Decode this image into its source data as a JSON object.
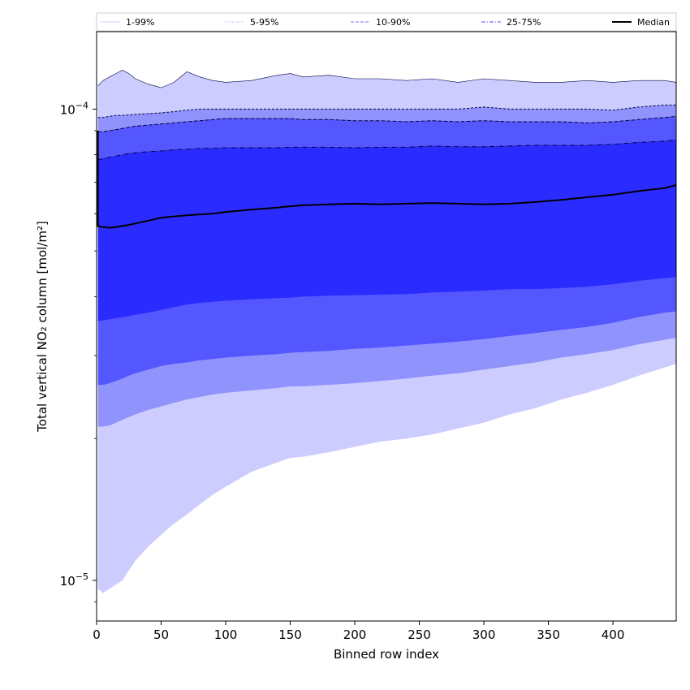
{
  "chart_data": {
    "type": "area",
    "xlabel": "Binned row index",
    "ylabel": "Total vertical NO₂ column [mol/m²]",
    "xlim": [
      0,
      449
    ],
    "ylim": [
      8.2e-06,
      0.000146
    ],
    "yscale": "log",
    "grid": false,
    "legend_position": "top",
    "x_ticks": [
      0,
      50,
      100,
      150,
      200,
      250,
      300,
      350,
      400
    ],
    "x_tick_labels": [
      "0",
      "50",
      "100",
      "150",
      "200",
      "250",
      "300",
      "350",
      "400"
    ],
    "y_ticks": [
      1e-05,
      0.0001
    ],
    "y_tick_labels": [
      {
        "base": "10",
        "exp": "−5"
      },
      {
        "base": "10",
        "exp": "−4"
      }
    ],
    "legend": [
      {
        "label": "1-99%",
        "color": "#cccdfe",
        "style": "solid"
      },
      {
        "label": "5-95%",
        "color": "#9193fd",
        "style": "dotted"
      },
      {
        "label": "10-90%",
        "color": "#6f72fd",
        "style": "dashed"
      },
      {
        "label": "25-75%",
        "color": "#4b4ef5",
        "style": "dashdot"
      },
      {
        "label": "Median",
        "color": "#000000",
        "style": "solid"
      }
    ],
    "x": [
      1,
      5,
      10,
      15,
      20,
      25,
      30,
      40,
      50,
      60,
      70,
      80,
      90,
      100,
      120,
      140,
      150,
      160,
      180,
      200,
      220,
      240,
      260,
      280,
      300,
      320,
      340,
      360,
      380,
      400,
      420,
      440,
      449
    ],
    "bands": [
      {
        "name": "1-99%",
        "fill": "#cccdfe",
        "lower": [
          9.6e-06,
          9.4e-06,
          9.6e-06,
          9.8e-06,
          1e-05,
          1.05e-05,
          1.1e-05,
          1.18e-05,
          1.25e-05,
          1.32e-05,
          1.38e-05,
          1.45e-05,
          1.52e-05,
          1.58e-05,
          1.7e-05,
          1.78e-05,
          1.82e-05,
          1.83e-05,
          1.87e-05,
          1.92e-05,
          1.97e-05,
          2e-05,
          2.04e-05,
          2.1e-05,
          2.16e-05,
          2.25e-05,
          2.32e-05,
          2.42e-05,
          2.5e-05,
          2.6e-05,
          2.72e-05,
          2.83e-05,
          2.88e-05
        ],
        "upper": [
          0.000112,
          0.000115,
          0.000117,
          0.000119,
          0.000121,
          0.000119,
          0.000116,
          0.000113,
          0.000111,
          0.000114,
          0.00012,
          0.000117,
          0.000115,
          0.000114,
          0.000115,
          0.000118,
          0.000119,
          0.000117,
          0.000118,
          0.000116,
          0.000116,
          0.000115,
          0.000116,
          0.000114,
          0.000116,
          0.000115,
          0.000114,
          0.000114,
          0.000115,
          0.000114,
          0.000115,
          0.000115,
          0.000114
        ]
      },
      {
        "name": "5-95%",
        "fill": "#9193fd",
        "lower": [
          2.12e-05,
          2.12e-05,
          2.13e-05,
          2.16e-05,
          2.19e-05,
          2.22e-05,
          2.25e-05,
          2.3e-05,
          2.34e-05,
          2.38e-05,
          2.42e-05,
          2.45e-05,
          2.48e-05,
          2.5e-05,
          2.53e-05,
          2.56e-05,
          2.58e-05,
          2.58e-05,
          2.6e-05,
          2.62e-05,
          2.65e-05,
          2.68e-05,
          2.72e-05,
          2.75e-05,
          2.8e-05,
          2.85e-05,
          2.9e-05,
          2.97e-05,
          3.02e-05,
          3.08e-05,
          3.17e-05,
          3.24e-05,
          3.27e-05
        ],
        "upper": [
          9.6e-05,
          9.6e-05,
          9.65e-05,
          9.7e-05,
          9.7e-05,
          9.72e-05,
          9.75e-05,
          9.78e-05,
          9.82e-05,
          9.88e-05,
          9.95e-05,
          0.0001,
          0.0001,
          0.0001,
          0.0001,
          0.0001,
          0.0001,
          0.0001,
          0.0001,
          0.0001,
          0.0001,
          0.0001,
          0.0001,
          0.0001,
          0.000101,
          0.0001,
          0.0001,
          0.0001,
          0.0001,
          9.95e-05,
          0.000101,
          0.000102,
          0.000102
        ]
      },
      {
        "name": "10-90%",
        "fill": "#5557fe",
        "lower": [
          2.6e-05,
          2.6e-05,
          2.62e-05,
          2.65e-05,
          2.68e-05,
          2.72e-05,
          2.75e-05,
          2.8e-05,
          2.85e-05,
          2.88e-05,
          2.9e-05,
          2.93e-05,
          2.95e-05,
          2.97e-05,
          3e-05,
          3.02e-05,
          3.04e-05,
          3.05e-05,
          3.07e-05,
          3.1e-05,
          3.12e-05,
          3.15e-05,
          3.18e-05,
          3.21e-05,
          3.25e-05,
          3.3e-05,
          3.35e-05,
          3.4e-05,
          3.45e-05,
          3.52e-05,
          3.62e-05,
          3.7e-05,
          3.72e-05
        ],
        "upper": [
          8.95e-05,
          8.95e-05,
          9e-05,
          9.05e-05,
          9.1e-05,
          9.15e-05,
          9.2e-05,
          9.25e-05,
          9.3e-05,
          9.35e-05,
          9.4e-05,
          9.45e-05,
          9.5e-05,
          9.55e-05,
          9.55e-05,
          9.55e-05,
          9.55e-05,
          9.5e-05,
          9.5e-05,
          9.45e-05,
          9.45e-05,
          9.4e-05,
          9.45e-05,
          9.4e-05,
          9.45e-05,
          9.4e-05,
          9.4e-05,
          9.4e-05,
          9.35e-05,
          9.4e-05,
          9.5e-05,
          9.6e-05,
          9.65e-05
        ]
      },
      {
        "name": "25-75%",
        "fill": "#2a2bfe",
        "lower": [
          3.55e-05,
          3.56e-05,
          3.58e-05,
          3.6e-05,
          3.62e-05,
          3.64e-05,
          3.66e-05,
          3.7e-05,
          3.75e-05,
          3.8e-05,
          3.85e-05,
          3.88e-05,
          3.9e-05,
          3.92e-05,
          3.95e-05,
          3.97e-05,
          3.98e-05,
          4e-05,
          4.02e-05,
          4.03e-05,
          4.04e-05,
          4.05e-05,
          4.08e-05,
          4.1e-05,
          4.12e-05,
          4.15e-05,
          4.15e-05,
          4.17e-05,
          4.2e-05,
          4.25e-05,
          4.32e-05,
          4.38e-05,
          4.4e-05
        ],
        "upper": [
          7.8e-05,
          7.85e-05,
          7.9e-05,
          7.95e-05,
          8e-05,
          8.05e-05,
          8.08e-05,
          8.12e-05,
          8.15e-05,
          8.2e-05,
          8.22e-05,
          8.25e-05,
          8.25e-05,
          8.28e-05,
          8.28e-05,
          8.28e-05,
          8.3e-05,
          8.3e-05,
          8.3e-05,
          8.28e-05,
          8.3e-05,
          8.3e-05,
          8.35e-05,
          8.32e-05,
          8.32e-05,
          8.35e-05,
          8.38e-05,
          8.38e-05,
          8.38e-05,
          8.42e-05,
          8.5e-05,
          8.55e-05,
          8.6e-05
        ]
      }
    ],
    "median": [
      5.65e-05,
      5.62e-05,
      5.6e-05,
      5.62e-05,
      5.65e-05,
      5.68e-05,
      5.72e-05,
      5.8e-05,
      5.88e-05,
      5.92e-05,
      5.95e-05,
      5.98e-05,
      6e-05,
      6.05e-05,
      6.12e-05,
      6.18e-05,
      6.22e-05,
      6.25e-05,
      6.28e-05,
      6.3e-05,
      6.28e-05,
      6.3e-05,
      6.32e-05,
      6.3e-05,
      6.28e-05,
      6.3e-05,
      6.35e-05,
      6.42e-05,
      6.5e-05,
      6.58e-05,
      6.7e-05,
      6.8e-05,
      6.9e-05
    ],
    "median_start": 9e-05
  }
}
